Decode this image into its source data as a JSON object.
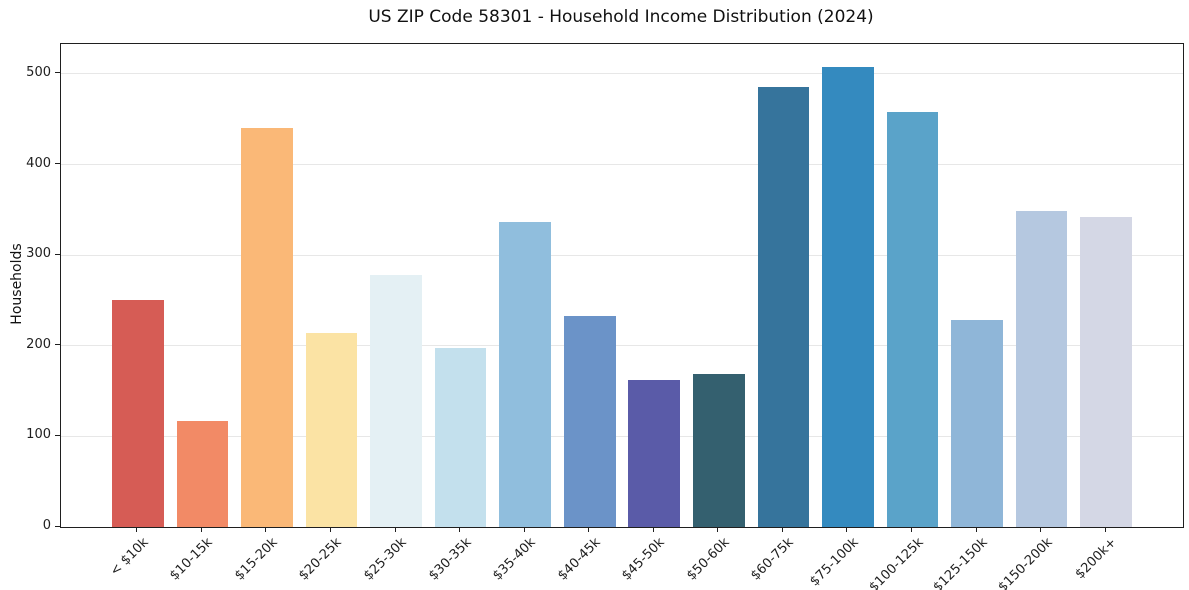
{
  "figure": {
    "background": "#ffffff",
    "spine_color": "#1f1f1f",
    "grid_color": "#e7e7e7",
    "text_color": "#1f1f1f"
  },
  "chart_data": {
    "type": "bar",
    "title": "US ZIP Code 58301 - Household Income Distribution (2024)",
    "xlabel": "",
    "ylabel": "Households",
    "categories": [
      "< $10k",
      "$10-15k",
      "$15-20k",
      "$20-25k",
      "$25-30k",
      "$30-35k",
      "$35-40k",
      "$40-45k",
      "$45-50k",
      "$50-60k",
      "$60-75k",
      "$75-100k",
      "$100-125k",
      "$125-150k",
      "$150-200k",
      "$200k+"
    ],
    "values": [
      250,
      117,
      440,
      214,
      278,
      198,
      337,
      233,
      162,
      169,
      486,
      508,
      458,
      228,
      349,
      342
    ],
    "bar_colors": [
      "#d65c55",
      "#f28a66",
      "#fab877",
      "#fbe3a4",
      "#e4f0f4",
      "#c3e0ed",
      "#90bedd",
      "#6b93c8",
      "#5a5ba8",
      "#34606f",
      "#36749c",
      "#348abf",
      "#5aa3c9",
      "#8fb6d8",
      "#b5c8e0",
      "#d4d7e5"
    ],
    "yticks": [
      0,
      100,
      200,
      300,
      400,
      500
    ],
    "ylim": [
      0,
      533
    ],
    "xlim": [
      -1.19,
      16.19
    ],
    "bar_width_units": 0.8,
    "grid": true,
    "legend": false,
    "x_tick_rotation": 45
  }
}
